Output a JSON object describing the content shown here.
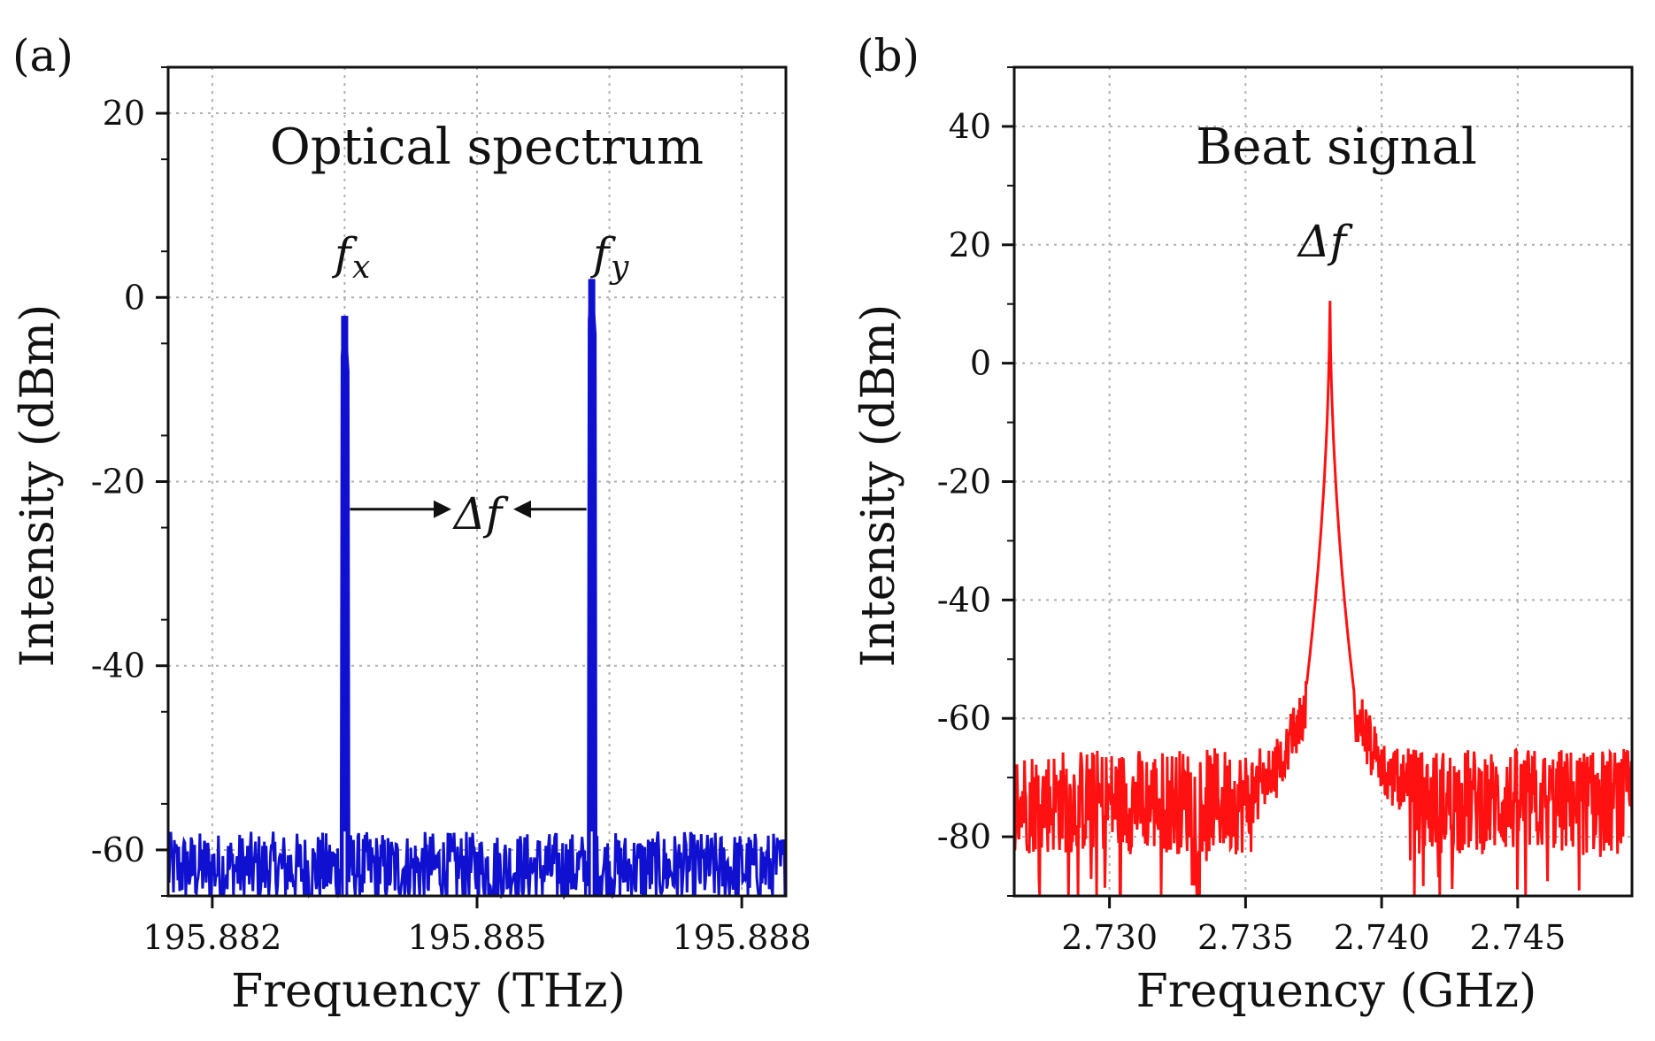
{
  "colors": {
    "series_a": "#1010d0",
    "series_b": "#ff1111",
    "axis": "#111111",
    "grid": "#b0b0b0"
  },
  "chart_data": [
    {
      "type": "line",
      "panel_label": "(a)",
      "title": "Optical spectrum",
      "xlabel": "Frequency (THz)",
      "ylabel": "Intensity (dBm)",
      "xlim": [
        195.8815,
        195.8885
      ],
      "ylim": [
        -65,
        25
      ],
      "xticks": [
        195.882,
        195.885,
        195.888
      ],
      "xtick_labels": [
        "195.882",
        "195.885",
        "195.888"
      ],
      "yticks": [
        20,
        0,
        -20,
        -40,
        -60
      ],
      "ytick_labels": [
        "20",
        "0",
        "-20",
        "-40",
        "-60"
      ],
      "grid": true,
      "noise_floor": -62,
      "noise_spread": 4,
      "series": [
        {
          "name": "f_x peak",
          "center": 195.8835,
          "peak": -2,
          "width": 4e-05
        },
        {
          "name": "f_y peak",
          "center": 195.8863,
          "peak": 2,
          "width": 4e-05
        }
      ],
      "annotations": {
        "fx_main": "f",
        "fx_sub": "x",
        "fy_main": "f",
        "fy_sub": "y",
        "delta": "Δf",
        "arrow_y": -23
      }
    },
    {
      "type": "line",
      "panel_label": "(b)",
      "title": "Beat signal",
      "xlabel": "Frequency (GHz)",
      "ylabel": "Intensity (dBm)",
      "xlim": [
        2.7265,
        2.7492
      ],
      "ylim": [
        -90,
        50
      ],
      "xticks": [
        2.73,
        2.735,
        2.74,
        2.745
      ],
      "xtick_labels": [
        "2.730",
        "2.735",
        "2.740",
        "2.745"
      ],
      "yticks": [
        40,
        20,
        0,
        -20,
        -40,
        -60,
        -80
      ],
      "ytick_labels": [
        "40",
        "20",
        "0",
        "-20",
        "-40",
        "-60",
        "-80"
      ],
      "grid": true,
      "noise_floor": -74,
      "noise_spread": 9,
      "series": [
        {
          "name": "beat note",
          "center": 2.7381,
          "peak": 14,
          "width": 0.00012,
          "shoulder": -58
        }
      ],
      "annotations": {
        "delta": "Δf"
      }
    }
  ]
}
